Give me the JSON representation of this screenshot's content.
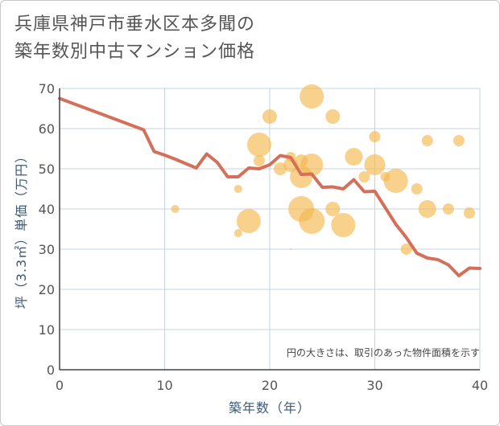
{
  "title_line1": "兵庫県神戸市垂水区本多聞の",
  "title_line2": "築年数別中古マンション価格",
  "chart_data": {
    "type": "scatter",
    "xlabel": "築年数（年）",
    "ylabel": "坪（3.3㎡）単価（万円）",
    "xlim": [
      0,
      40
    ],
    "ylim": [
      0,
      70
    ],
    "xticks": [
      0,
      10,
      20,
      30,
      40
    ],
    "yticks": [
      0,
      10,
      20,
      30,
      40,
      50,
      60,
      70
    ],
    "grid": true,
    "annotation": "円の大きさは、取引のあった物件面積を示す",
    "colors": {
      "bubble": "#f5b94f",
      "line": "#d4705a",
      "grid": "#c5d3e0",
      "axis": "#444444"
    },
    "bubbles": [
      {
        "x": 11,
        "y": 40,
        "size": 5
      },
      {
        "x": 17,
        "y": 45,
        "size": 5
      },
      {
        "x": 17,
        "y": 34,
        "size": 5
      },
      {
        "x": 18,
        "y": 37,
        "size": 15
      },
      {
        "x": 19,
        "y": 56,
        "size": 15
      },
      {
        "x": 19,
        "y": 52,
        "size": 7
      },
      {
        "x": 20,
        "y": 63,
        "size": 9
      },
      {
        "x": 21,
        "y": 50,
        "size": 8
      },
      {
        "x": 22,
        "y": 53,
        "size": 6
      },
      {
        "x": 22,
        "y": 51,
        "size": 9
      },
      {
        "x": 22,
        "y": 30,
        "size": 1
      },
      {
        "x": 23,
        "y": 52,
        "size": 8
      },
      {
        "x": 23,
        "y": 48,
        "size": 14
      },
      {
        "x": 23,
        "y": 40,
        "size": 16
      },
      {
        "x": 24,
        "y": 68,
        "size": 15
      },
      {
        "x": 24,
        "y": 51,
        "size": 14
      },
      {
        "x": 24,
        "y": 37,
        "size": 16
      },
      {
        "x": 26,
        "y": 63,
        "size": 9
      },
      {
        "x": 26,
        "y": 40,
        "size": 9
      },
      {
        "x": 26,
        "y": 37,
        "size": 1
      },
      {
        "x": 27,
        "y": 36,
        "size": 15
      },
      {
        "x": 28,
        "y": 53,
        "size": 11
      },
      {
        "x": 29,
        "y": 48,
        "size": 7
      },
      {
        "x": 30,
        "y": 58,
        "size": 7
      },
      {
        "x": 30,
        "y": 51,
        "size": 13
      },
      {
        "x": 31,
        "y": 48,
        "size": 6
      },
      {
        "x": 32,
        "y": 47,
        "size": 15
      },
      {
        "x": 33,
        "y": 30,
        "size": 7
      },
      {
        "x": 34,
        "y": 45,
        "size": 7
      },
      {
        "x": 35,
        "y": 57,
        "size": 7
      },
      {
        "x": 35,
        "y": 40,
        "size": 11
      },
      {
        "x": 37,
        "y": 40,
        "size": 7
      },
      {
        "x": 38,
        "y": 57,
        "size": 7
      },
      {
        "x": 39,
        "y": 39,
        "size": 7
      }
    ],
    "trend": {
      "x": [
        0,
        8,
        9,
        10,
        11,
        12,
        13,
        14,
        15,
        16,
        17,
        18,
        19,
        20,
        21,
        22,
        23,
        24,
        25,
        26,
        27,
        28,
        29,
        30,
        31,
        32,
        33,
        34,
        35,
        36,
        37,
        38,
        39,
        40
      ],
      "y": [
        67.5,
        59.7,
        54.3,
        53.4,
        52.4,
        51.3,
        50.2,
        53.7,
        51.6,
        48.0,
        48.0,
        50.2,
        50.0,
        51.0,
        53.3,
        52.8,
        48.6,
        48.7,
        45.4,
        45.5,
        45.0,
        47.3,
        44.3,
        44.4,
        40.3,
        36.2,
        32.9,
        29.0,
        27.8,
        27.4,
        26.1,
        23.4,
        25.3,
        25.2
      ]
    }
  }
}
